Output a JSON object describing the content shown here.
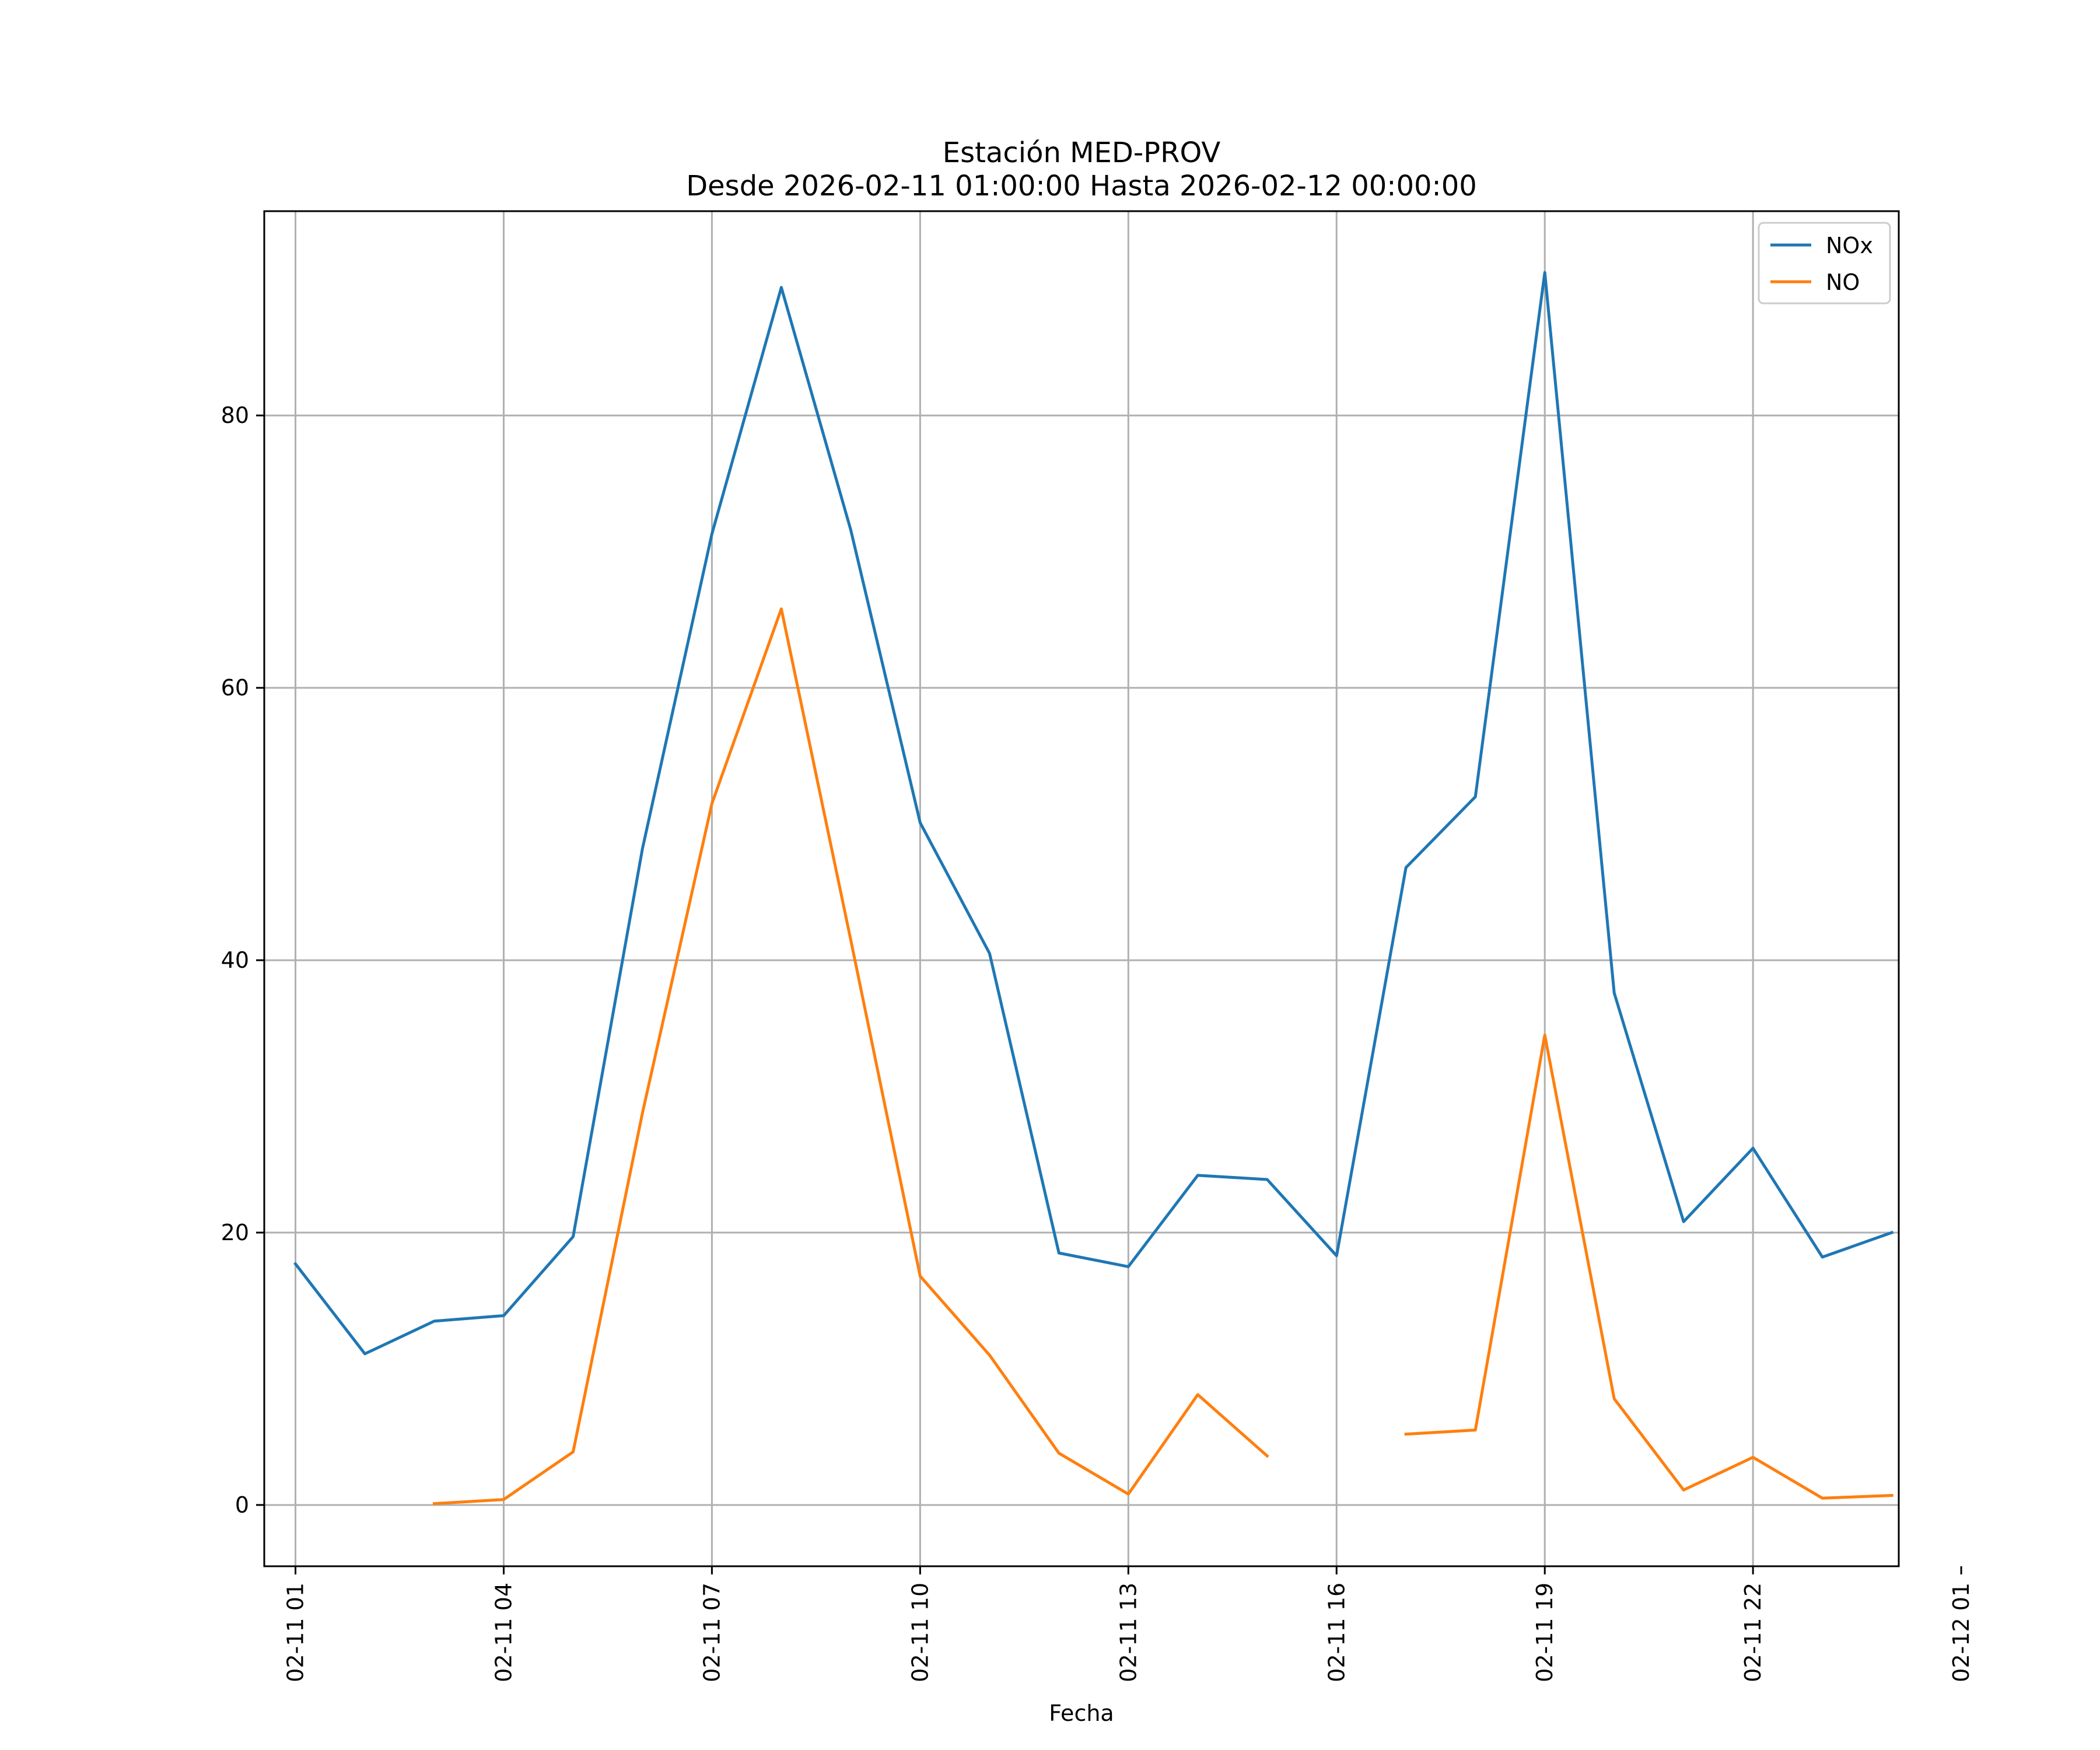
{
  "chart_data": {
    "type": "line",
    "title": [
      "Estación MED-PROV",
      "Desde 2026-02-11 01:00:00 Hasta 2026-02-12 00:00:00"
    ],
    "xlabel": "Fecha",
    "ylabel": "",
    "xlim": [
      0.55,
      24.1
    ],
    "ylim": [
      -4.5,
      95
    ],
    "x_ticks": [
      1,
      4,
      7,
      10,
      13,
      16,
      19,
      22,
      25
    ],
    "x_tick_labels": [
      "02-11 01",
      "02-11 04",
      "02-11 07",
      "02-11 10",
      "02-11 13",
      "02-11 16",
      "02-11 19",
      "02-11 22",
      "02-12 01"
    ],
    "y_ticks": [
      0,
      20,
      40,
      60,
      80
    ],
    "y_tick_labels": [
      "0",
      "20",
      "40",
      "60",
      "80"
    ],
    "grid": true,
    "legend_position": "top-right",
    "x": [
      1,
      2,
      3,
      4,
      5,
      6,
      7,
      8,
      9,
      10,
      11,
      12,
      13,
      14,
      15,
      16,
      17,
      18,
      19,
      20,
      21,
      22,
      23,
      24
    ],
    "series": [
      {
        "name": "NOx",
        "color": "#1f77b4",
        "values": [
          17.7,
          11.1,
          13.5,
          13.9,
          19.7,
          48.2,
          71.3,
          89.4,
          71.6,
          50.1,
          40.5,
          18.5,
          17.5,
          24.2,
          23.9,
          18.3,
          46.8,
          52.0,
          90.5,
          37.6,
          20.8,
          26.2,
          18.2,
          20.0
        ]
      },
      {
        "name": "NO",
        "color": "#ff7f0e",
        "values": [
          null,
          null,
          0.1,
          0.4,
          3.9,
          28.8,
          51.5,
          65.8,
          41.5,
          16.8,
          11.0,
          3.8,
          0.8,
          8.1,
          3.6,
          null,
          5.2,
          5.5,
          34.5,
          7.8,
          1.1,
          3.5,
          0.5,
          0.7
        ]
      }
    ]
  }
}
